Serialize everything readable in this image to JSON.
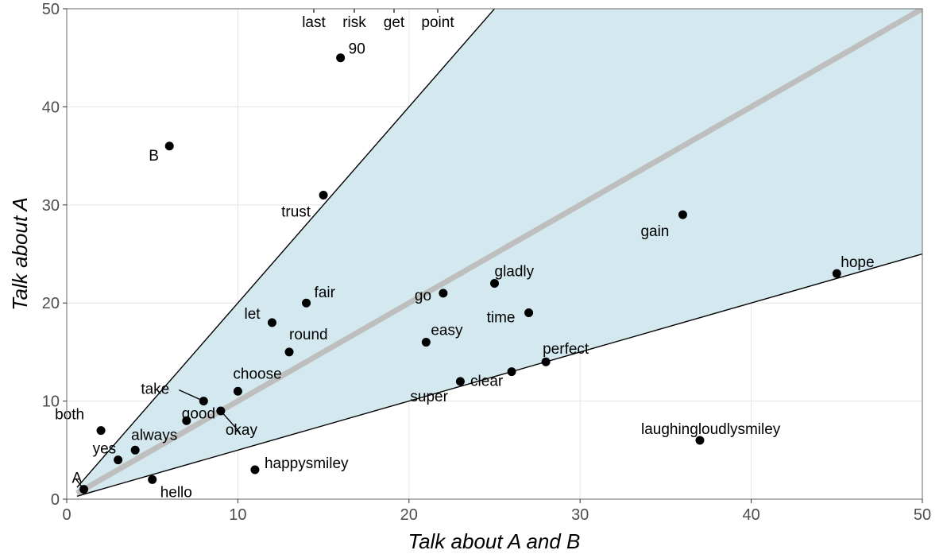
{
  "chart_data": {
    "type": "scatter",
    "xlabel": "Talk about A and B",
    "ylabel": "Talk about A",
    "xlim": [
      0,
      50
    ],
    "ylim": [
      0,
      50
    ],
    "x_ticks": [
      0,
      10,
      20,
      30,
      40,
      50
    ],
    "y_ticks": [
      0,
      10,
      20,
      30,
      40,
      50
    ],
    "grid": true,
    "shaded_band": {
      "lower_slope": 0.5,
      "upper_slope": 2.0
    },
    "reference_line": {
      "slope": 1
    },
    "points": [
      {
        "label": "A",
        "x": 1,
        "y": 1
      },
      {
        "label": "yes",
        "x": 3,
        "y": 4
      },
      {
        "label": "always",
        "x": 4,
        "y": 5
      },
      {
        "label": "both",
        "x": 2,
        "y": 7
      },
      {
        "label": "hello",
        "x": 5,
        "y": 2
      },
      {
        "label": "B",
        "x": 6,
        "y": 36
      },
      {
        "label": "good",
        "x": 7,
        "y": 8
      },
      {
        "label": "take",
        "x": 8,
        "y": 10
      },
      {
        "label": "okay",
        "x": 9,
        "y": 9
      },
      {
        "label": "choose",
        "x": 10,
        "y": 11
      },
      {
        "label": "happysmiley",
        "x": 11,
        "y": 3
      },
      {
        "label": "let",
        "x": 12,
        "y": 18
      },
      {
        "label": "round",
        "x": 13,
        "y": 15
      },
      {
        "label": "fair",
        "x": 14,
        "y": 20
      },
      {
        "label": "trust",
        "x": 15,
        "y": 31
      },
      {
        "label": "90",
        "x": 16,
        "y": 45
      },
      {
        "label": "easy",
        "x": 21,
        "y": 16
      },
      {
        "label": "go",
        "x": 22,
        "y": 21
      },
      {
        "label": "super",
        "x": 23,
        "y": 12
      },
      {
        "label": "gladly",
        "x": 25,
        "y": 22
      },
      {
        "label": "clear",
        "x": 26,
        "y": 13
      },
      {
        "label": "time",
        "x": 27,
        "y": 19
      },
      {
        "label": "perfect",
        "x": 28,
        "y": 14
      },
      {
        "label": "gain",
        "x": 36,
        "y": 29
      },
      {
        "label": "laughingloudlysmiley",
        "x": 37,
        "y": 6
      },
      {
        "label": "hope",
        "x": 45,
        "y": 23
      }
    ],
    "offscale_labels": [
      "last",
      "risk",
      "get",
      "point"
    ]
  },
  "colors": {
    "band": "#d4e9ef",
    "reference_line": "#bebebe",
    "point": "#000000",
    "grid": "#e5e5e5"
  }
}
